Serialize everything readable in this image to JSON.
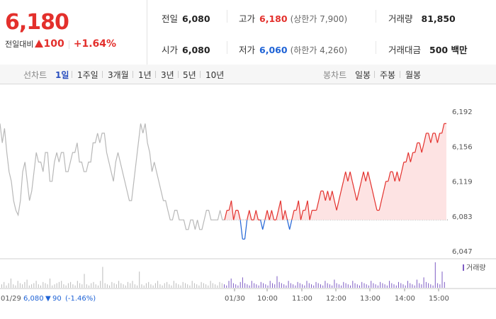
{
  "quote": {
    "price": "6,180",
    "change_label": "전일대비",
    "change_value": "100",
    "change_pct": "+1.64%",
    "prev": {
      "label": "전일",
      "value": "6,080"
    },
    "open": {
      "label": "시가",
      "value": "6,080"
    },
    "high": {
      "label": "고가",
      "value": "6,180",
      "sub": "(상한가 7,900)"
    },
    "low": {
      "label": "저가",
      "value": "6,060",
      "sub": "(하한가 4,260)"
    },
    "volume": {
      "label": "거래량",
      "value": "81,850"
    },
    "amount": {
      "label": "거래대금",
      "value": "500 백만"
    }
  },
  "tabs": {
    "line_label": "선차트",
    "line_items": [
      "1일",
      "1주일",
      "3개월",
      "1년",
      "3년",
      "5년",
      "10년"
    ],
    "active": "1일",
    "candle_label": "봉차트",
    "candle_items": [
      "일봉",
      "주봉",
      "월봉"
    ]
  },
  "colors": {
    "up": "#e3302c",
    "down": "#1f63d6",
    "prev_day": "#b8b8b8",
    "fill": "#fde3e3"
  },
  "chart_data": {
    "type": "line",
    "y_ticks": [
      "6,192",
      "6,156",
      "6,119",
      "6,083",
      "6,047"
    ],
    "ylim": [
      6047,
      6192
    ],
    "baseline": 6080,
    "x_labels": [
      "01/30",
      "10:00",
      "11:00",
      "12:00",
      "13:00",
      "14:00",
      "15:00"
    ],
    "prev_day_label": "01/29",
    "prev_day_close": "6,080",
    "prev_day_change": "90",
    "prev_day_pct": "(-1.46%)",
    "volume_legend": "거래량",
    "series": [
      {
        "segment": "01/29",
        "values": [
          6180,
          6160,
          6175,
          6150,
          6130,
          6120,
          6100,
          6090,
          6085,
          6100,
          6130,
          6140,
          6120,
          6100,
          6110,
          6130,
          6150,
          6140,
          6140,
          6130,
          6150,
          6150,
          6120,
          6120,
          6140,
          6150,
          6140,
          6150,
          6150,
          6130,
          6130,
          6140,
          6150,
          6150,
          6160,
          6140,
          6140,
          6130,
          6130,
          6140,
          6140,
          6160,
          6160,
          6170,
          6160,
          6170,
          6170,
          6150,
          6140,
          6130,
          6120,
          6140,
          6150,
          6140,
          6130,
          6120,
          6110,
          6100,
          6100,
          6120,
          6140,
          6160,
          6180,
          6170,
          6180,
          6160,
          6150,
          6130,
          6140,
          6130,
          6120,
          6110,
          6100,
          6100,
          6090,
          6080,
          6080,
          6090,
          6090,
          6080,
          6080,
          6080,
          6070,
          6070,
          6080,
          6080,
          6070,
          6080,
          6070,
          6070,
          6080,
          6090,
          6090,
          6080,
          6080,
          6080,
          6080,
          6090,
          6080,
          6080
        ]
      },
      {
        "segment": "01/30",
        "values": [
          6080,
          6090,
          6090,
          6100,
          6080,
          6090,
          6090,
          6080,
          6060,
          6060,
          6080,
          6090,
          6080,
          6080,
          6090,
          6080,
          6080,
          6070,
          6080,
          6090,
          6080,
          6090,
          6080,
          6080,
          6090,
          6100,
          6080,
          6090,
          6080,
          6070,
          6080,
          6090,
          6090,
          6100,
          6080,
          6090,
          6090,
          6100,
          6080,
          6090,
          6090,
          6090,
          6100,
          6110,
          6110,
          6100,
          6110,
          6100,
          6110,
          6100,
          6090,
          6100,
          6110,
          6120,
          6130,
          6120,
          6130,
          6120,
          6110,
          6100,
          6110,
          6120,
          6130,
          6120,
          6130,
          6120,
          6110,
          6100,
          6090,
          6090,
          6100,
          6110,
          6120,
          6120,
          6130,
          6130,
          6120,
          6130,
          6120,
          6130,
          6140,
          6140,
          6150,
          6140,
          6150,
          6150,
          6160,
          6160,
          6150,
          6160,
          6170,
          6170,
          6160,
          6170,
          6170,
          6160,
          6170,
          6170,
          6180,
          6180
        ]
      }
    ],
    "volume": [
      3,
      5,
      2,
      4,
      8,
      3,
      2,
      6,
      4,
      3,
      5,
      7,
      2,
      3,
      4,
      6,
      3,
      2,
      5,
      4,
      3,
      8,
      2,
      3,
      4,
      5,
      6,
      3,
      2,
      4,
      5,
      3,
      2,
      6,
      4,
      3,
      12,
      3,
      2,
      4,
      5,
      3,
      2,
      6,
      18,
      4,
      3,
      2,
      5,
      4,
      3,
      6,
      4,
      3,
      2,
      5,
      4,
      6,
      3,
      2,
      14,
      3,
      2,
      4,
      5,
      3,
      2,
      4,
      6,
      3,
      2,
      4,
      5,
      3,
      2,
      6,
      4,
      3,
      2,
      5,
      4,
      3,
      2,
      6,
      4,
      3,
      2,
      5,
      4,
      3,
      2,
      6,
      4,
      3,
      2,
      5,
      4,
      3,
      2,
      6,
      8,
      4,
      3,
      2,
      5,
      9,
      4,
      3,
      2,
      6,
      4,
      3,
      2,
      5,
      4,
      3,
      2,
      6,
      4,
      3,
      10,
      5,
      4,
      3,
      2,
      6,
      4,
      3,
      2,
      5,
      4,
      3,
      2,
      6,
      4,
      3,
      2,
      5,
      4,
      3,
      2,
      6,
      4,
      3,
      2,
      7,
      4,
      3,
      2,
      5,
      4,
      3,
      2,
      6,
      4,
      3,
      2,
      5,
      4,
      3,
      2,
      6,
      4,
      3,
      2,
      5,
      4,
      3,
      2,
      6,
      4,
      3,
      2,
      5,
      4,
      3,
      2,
      6,
      4,
      3,
      2,
      7,
      4,
      3,
      9,
      5,
      4,
      3,
      2,
      22,
      4,
      3,
      14,
      5
    ]
  }
}
